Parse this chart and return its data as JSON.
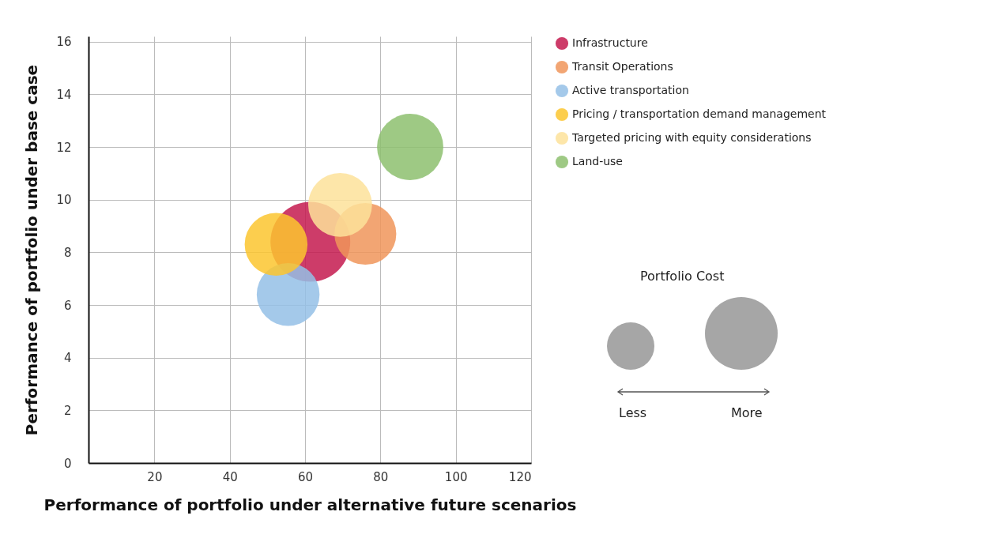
{
  "chart_data": {
    "type": "bubble",
    "xlabel": "Performance of portfolio under alternative future scenarios",
    "ylabel": "Performance of portfolio under base case",
    "xlim": [
      2.5,
      120
    ],
    "xticks": [
      20,
      40,
      60,
      80,
      100,
      120
    ],
    "ylim": [
      0,
      16.2
    ],
    "yticks": [
      0,
      2,
      4,
      6,
      8,
      10,
      12,
      14,
      16
    ],
    "grid": true,
    "legend": "right",
    "series": [
      {
        "name": "Infrastructure",
        "color": "#c41a4f",
        "x": [
          61.4
        ],
        "values": [
          8.4
        ],
        "sizes": [
          1
        ]
      },
      {
        "name": "Transit Operations",
        "color": "#f0955a",
        "x": [
          76
        ],
        "values": [
          8.7
        ],
        "sizes": [
          0.6
        ]
      },
      {
        "name": "Active transportation",
        "color": "#94bfe6",
        "x": [
          55.5
        ],
        "values": [
          6.4
        ],
        "sizes": [
          0.62
        ]
      },
      {
        "name": "Pricing / transportation demand management",
        "color": "#fcc52f",
        "x": [
          52.3
        ],
        "values": [
          8.3
        ],
        "sizes": [
          0.62
        ]
      },
      {
        "name": "Targeted pricing with equity considerations",
        "color": "#fde29a",
        "x": [
          69.3
        ],
        "values": [
          9.8
        ],
        "sizes": [
          0.64
        ]
      },
      {
        "name": "Land-use",
        "color": "#8dc06e",
        "x": [
          87.9
        ],
        "values": [
          12.0
        ],
        "sizes": [
          0.69
        ]
      }
    ],
    "annotations": [
      "Portfolio Cost",
      "Less",
      "More"
    ]
  }
}
